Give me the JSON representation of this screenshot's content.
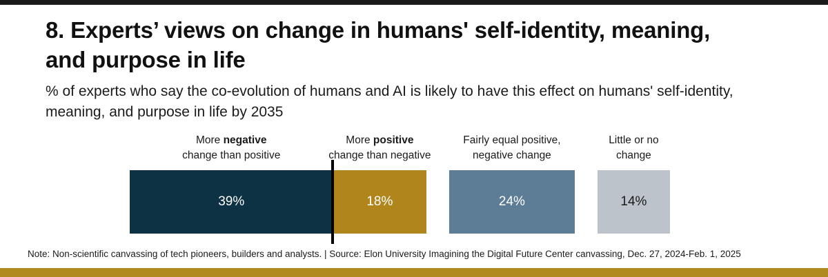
{
  "title": "8. Experts’ views on change in humans' self-identity, meaning, and purpose in life",
  "subtitle": "% of experts who say the co-evolution of humans and AI is likely to have this effect on humans' self-identity, meaning, and purpose in life by 2035",
  "note": "Note: Non-scientific canvassing of tech pioneers, builders and analysts. | Source: Elon University Imagining the Digital Future Center canvassing,  Dec. 27, 2024-Feb. 1, 2025",
  "colors": {
    "negative": "#0d3244",
    "positive": "#b0851c",
    "equal": "#5d7c96",
    "none": "#bcc3cb",
    "bottom_band": "#b08a1e",
    "top_band": "#1a1a1a"
  },
  "chart_data": {
    "type": "bar",
    "orientation": "horizontal-segments",
    "categories": [
      "More negative change than positive",
      "More positive change than negative",
      "Fairly equal positive, negative change",
      "Little or no change"
    ],
    "values": [
      39,
      18,
      24,
      14
    ],
    "value_labels": [
      "39%",
      "18%",
      "24%",
      "14%"
    ],
    "label_parts": [
      {
        "before": "More ",
        "bold": "negative",
        "after": "change than positive"
      },
      {
        "before": "More ",
        "bold": "positive",
        "after": "change than negative"
      },
      {
        "before": "Fairly equal positive,",
        "bold": "",
        "after": "negative change"
      },
      {
        "before": "Little or no",
        "bold": "",
        "after": "change"
      }
    ],
    "grouping": [
      [
        "More negative change than positive",
        "More positive change than negative"
      ],
      [
        "Fairly equal positive, negative change"
      ],
      [
        "Little or no change"
      ]
    ],
    "unit": "%",
    "title": "8. Experts’ views on change in humans' self-identity, meaning, and purpose in life",
    "xlabel": "",
    "ylabel": "",
    "grid": false,
    "legend": "none"
  }
}
